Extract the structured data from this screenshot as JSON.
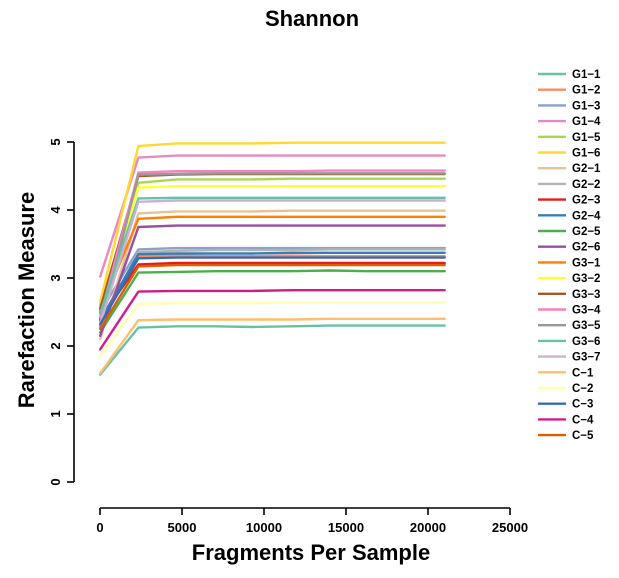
{
  "chart_data": {
    "type": "line",
    "title": "Shannon",
    "xlabel": "Fragments Per Sample",
    "ylabel": "Rarefaction Measure",
    "xlim": [
      0,
      25000
    ],
    "ylim": [
      0,
      5
    ],
    "xticks": [
      0,
      5000,
      10000,
      15000,
      20000,
      25000
    ],
    "yticks": [
      0,
      1,
      2,
      3,
      4,
      5
    ],
    "grid": false,
    "legend_position": "right",
    "x": [
      10,
      2340,
      4680,
      7010,
      9350,
      11680,
      14020,
      16350,
      18690,
      21020
    ],
    "series": [
      {
        "name": "G1−1",
        "color": "#66C2A5",
        "values": [
          1.58,
          2.27,
          2.29,
          2.29,
          2.28,
          2.29,
          2.3,
          2.3,
          2.3,
          2.3
        ]
      },
      {
        "name": "G1−2",
        "color": "#FC8D62",
        "values": [
          2.35,
          3.32,
          3.33,
          3.32,
          3.32,
          3.33,
          3.32,
          3.32,
          3.32,
          3.32
        ]
      },
      {
        "name": "G1−3",
        "color": "#8DA0CB",
        "values": [
          2.5,
          3.42,
          3.44,
          3.44,
          3.44,
          3.44,
          3.44,
          3.44,
          3.44,
          3.44
        ]
      },
      {
        "name": "G1−4",
        "color": "#E78AC3",
        "values": [
          3.02,
          4.77,
          4.8,
          4.8,
          4.8,
          4.8,
          4.8,
          4.8,
          4.8,
          4.8
        ]
      },
      {
        "name": "G1−5",
        "color": "#A6D854",
        "values": [
          2.6,
          4.4,
          4.45,
          4.45,
          4.45,
          4.46,
          4.46,
          4.46,
          4.46,
          4.46
        ]
      },
      {
        "name": "G1−6",
        "color": "#FFD92F",
        "values": [
          2.65,
          4.94,
          4.98,
          4.98,
          4.98,
          4.99,
          4.99,
          4.99,
          4.99,
          4.99
        ]
      },
      {
        "name": "G2−1",
        "color": "#E5C494",
        "values": [
          2.1,
          3.95,
          3.98,
          3.98,
          3.98,
          3.99,
          3.99,
          3.99,
          3.99,
          3.99
        ]
      },
      {
        "name": "G2−2",
        "color": "#B3B3B3",
        "values": [
          2.3,
          3.38,
          3.4,
          3.41,
          3.41,
          3.41,
          3.42,
          3.42,
          3.42,
          3.42
        ]
      },
      {
        "name": "G2−3",
        "color": "#E41A1C",
        "values": [
          2.4,
          3.2,
          3.22,
          3.22,
          3.22,
          3.22,
          3.22,
          3.22,
          3.22,
          3.22
        ]
      },
      {
        "name": "G2−4",
        "color": "#377EB8",
        "values": [
          2.38,
          3.35,
          3.36,
          3.36,
          3.36,
          3.37,
          3.37,
          3.37,
          3.37,
          3.37
        ]
      },
      {
        "name": "G2−5",
        "color": "#4DAF4A",
        "values": [
          2.2,
          3.08,
          3.09,
          3.1,
          3.1,
          3.1,
          3.11,
          3.1,
          3.1,
          3.1
        ]
      },
      {
        "name": "G2−6",
        "color": "#984EA3",
        "values": [
          2.15,
          3.75,
          3.77,
          3.77,
          3.77,
          3.77,
          3.77,
          3.77,
          3.77,
          3.77
        ]
      },
      {
        "name": "G3−1",
        "color": "#FF7F00",
        "values": [
          2.52,
          3.87,
          3.9,
          3.9,
          3.9,
          3.9,
          3.9,
          3.9,
          3.9,
          3.9
        ]
      },
      {
        "name": "G3−2",
        "color": "#FFFF33",
        "values": [
          2.45,
          4.33,
          4.35,
          4.35,
          4.35,
          4.35,
          4.35,
          4.35,
          4.35,
          4.35
        ]
      },
      {
        "name": "G3−3",
        "color": "#A65628",
        "values": [
          2.55,
          4.5,
          4.52,
          4.53,
          4.53,
          4.53,
          4.53,
          4.53,
          4.53,
          4.53
        ]
      },
      {
        "name": "G3−4",
        "color": "#F781BF",
        "values": [
          2.42,
          4.55,
          4.57,
          4.57,
          4.57,
          4.57,
          4.58,
          4.58,
          4.58,
          4.58
        ]
      },
      {
        "name": "G3−5",
        "color": "#999999",
        "values": [
          2.28,
          4.52,
          4.53,
          4.54,
          4.54,
          4.54,
          4.54,
          4.54,
          4.54,
          4.54
        ]
      },
      {
        "name": "G3−6",
        "color": "#66C2A5",
        "values": [
          2.48,
          4.17,
          4.18,
          4.18,
          4.18,
          4.18,
          4.18,
          4.18,
          4.18,
          4.18
        ]
      },
      {
        "name": "G3−7",
        "color": "#CAB2D6",
        "values": [
          2.33,
          4.12,
          4.14,
          4.14,
          4.14,
          4.14,
          4.14,
          4.14,
          4.14,
          4.14
        ]
      },
      {
        "name": "C−1",
        "color": "#FDBF6F",
        "values": [
          1.6,
          2.38,
          2.39,
          2.39,
          2.39,
          2.39,
          2.4,
          2.4,
          2.4,
          2.4
        ]
      },
      {
        "name": "C−2",
        "color": "#FFFFB3",
        "values": [
          1.85,
          2.62,
          2.63,
          2.63,
          2.63,
          2.64,
          2.64,
          2.64,
          2.64,
          2.64
        ]
      },
      {
        "name": "C−3",
        "color": "#386CB0",
        "values": [
          2.32,
          3.29,
          3.3,
          3.3,
          3.3,
          3.3,
          3.3,
          3.3,
          3.3,
          3.3
        ]
      },
      {
        "name": "C−4",
        "color": "#D01C8B",
        "values": [
          1.95,
          2.8,
          2.81,
          2.81,
          2.81,
          2.82,
          2.82,
          2.82,
          2.82,
          2.82
        ]
      },
      {
        "name": "C−5",
        "color": "#D95F02",
        "values": [
          2.25,
          3.17,
          3.19,
          3.19,
          3.19,
          3.19,
          3.19,
          3.19,
          3.19,
          3.19
        ]
      }
    ]
  }
}
